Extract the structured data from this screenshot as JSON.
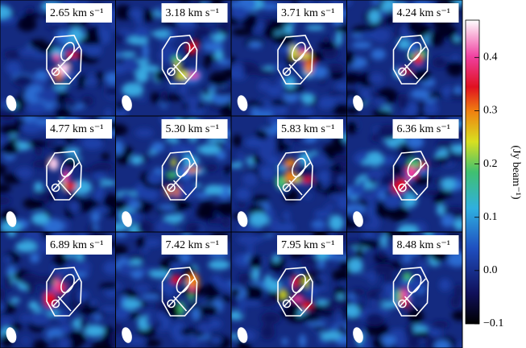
{
  "chart_data": {
    "type": "channel_map",
    "panels": [
      "2.65 km s⁻¹",
      "3.18 km s⁻¹",
      "3.71 km s⁻¹",
      "4.24 km s⁻¹",
      "4.77 km s⁻¹",
      "5.30 km s⁻¹",
      "5.83 km s⁻¹",
      "6.36 km s⁻¹",
      "6.89 km s⁻¹",
      "7.42 km s⁻¹",
      "7.95 km s⁻¹",
      "8.48 km s⁻¹"
    ],
    "colorbar_label": "(Jy beam⁻¹)",
    "ylim": [
      -0.1,
      0.47
    ],
    "yticks": [
      {
        "value": -0.1,
        "label": "−0.1"
      },
      {
        "value": 0,
        "label": "0.0"
      },
      0.1,
      0.2,
      0.3,
      0.4
    ]
  }
}
